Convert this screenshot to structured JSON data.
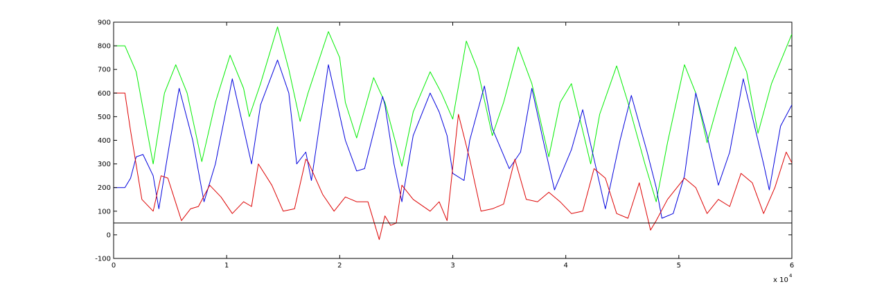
{
  "chart_data": {
    "type": "line",
    "title": "",
    "xlabel": "",
    "ylabel": "",
    "xlim": [
      0,
      6
    ],
    "ylim": [
      -100,
      900
    ],
    "x_exponent_label": "x 10",
    "x_exponent_power": "4",
    "xticks": [
      "0",
      "1",
      "2",
      "3",
      "4",
      "5",
      "6"
    ],
    "yticks": [
      "-100",
      "0",
      "100",
      "200",
      "300",
      "400",
      "500",
      "600",
      "700",
      "800",
      "900"
    ],
    "grid": false,
    "legend": "none",
    "reference_line": {
      "y": 50,
      "color": "#000000"
    },
    "series": [
      {
        "color": "#00ee00",
        "x": [
          0,
          0.1,
          0.2,
          0.35,
          0.45,
          0.55,
          0.65,
          0.78,
          0.9,
          1.03,
          1.15,
          1.2,
          1.3,
          1.45,
          1.55,
          1.65,
          1.72,
          1.9,
          2.0,
          2.05,
          2.15,
          2.3,
          2.4,
          2.55,
          2.65,
          2.8,
          2.9,
          3.0,
          3.12,
          3.22,
          3.35,
          3.45,
          3.58,
          3.7,
          3.85,
          3.95,
          4.05,
          4.22,
          4.3,
          4.45,
          4.55,
          4.7,
          4.8,
          4.9,
          5.05,
          5.15,
          5.25,
          5.35,
          5.5,
          5.6,
          5.7,
          5.82,
          6.0
        ],
        "values": [
          800,
          800,
          690,
          300,
          600,
          720,
          600,
          310,
          560,
          760,
          620,
          500,
          640,
          880,
          700,
          480,
          600,
          860,
          750,
          560,
          410,
          665,
          560,
          290,
          520,
          690,
          600,
          490,
          820,
          700,
          420,
          560,
          795,
          640,
          330,
          560,
          640,
          300,
          510,
          715,
          560,
          300,
          140,
          390,
          720,
          600,
          390,
          560,
          795,
          690,
          430,
          640,
          850
        ]
      },
      {
        "color": "#0000dd",
        "x": [
          0,
          0.1,
          0.15,
          0.2,
          0.26,
          0.35,
          0.4,
          0.5,
          0.58,
          0.7,
          0.8,
          0.9,
          1.05,
          1.15,
          1.22,
          1.3,
          1.45,
          1.55,
          1.62,
          1.7,
          1.75,
          1.9,
          2.05,
          2.15,
          2.22,
          2.38,
          2.4,
          2.48,
          2.55,
          2.65,
          2.8,
          2.88,
          2.95,
          3.0,
          3.1,
          3.15,
          3.28,
          3.35,
          3.5,
          3.6,
          3.7,
          3.8,
          3.9,
          4.05,
          4.15,
          4.25,
          4.35,
          4.48,
          4.58,
          4.72,
          4.8,
          4.85,
          4.95,
          5.05,
          5.15,
          5.25,
          5.35,
          5.45,
          5.57,
          5.65,
          5.75,
          5.8,
          5.9,
          6.0
        ],
        "values": [
          200,
          200,
          240,
          330,
          340,
          250,
          110,
          400,
          620,
          400,
          140,
          300,
          660,
          450,
          300,
          550,
          740,
          600,
          300,
          350,
          230,
          720,
          400,
          270,
          280,
          585,
          550,
          300,
          140,
          420,
          600,
          520,
          420,
          260,
          230,
          400,
          630,
          450,
          280,
          350,
          620,
          400,
          190,
          360,
          530,
          320,
          110,
          400,
          590,
          350,
          200,
          70,
          90,
          250,
          600,
          420,
          210,
          350,
          660,
          500,
          300,
          190,
          460,
          550
        ]
      },
      {
        "color": "#dd0000",
        "x": [
          0,
          0.1,
          0.15,
          0.25,
          0.35,
          0.42,
          0.48,
          0.6,
          0.68,
          0.75,
          0.85,
          0.95,
          1.05,
          1.15,
          1.22,
          1.28,
          1.4,
          1.5,
          1.6,
          1.7,
          1.72,
          1.85,
          1.95,
          2.05,
          2.15,
          2.25,
          2.35,
          2.4,
          2.45,
          2.5,
          2.55,
          2.65,
          2.8,
          2.88,
          2.95,
          3.05,
          3.15,
          3.25,
          3.35,
          3.45,
          3.55,
          3.65,
          3.75,
          3.85,
          3.95,
          4.05,
          4.15,
          4.25,
          4.35,
          4.45,
          4.55,
          4.65,
          4.75,
          4.8,
          4.9,
          5.05,
          5.15,
          5.25,
          5.35,
          5.45,
          5.55,
          5.65,
          5.75,
          5.85,
          5.95,
          6.0
        ],
        "values": [
          600,
          600,
          440,
          150,
          100,
          250,
          240,
          60,
          110,
          120,
          210,
          160,
          90,
          140,
          120,
          300,
          210,
          100,
          110,
          320,
          310,
          170,
          100,
          160,
          140,
          140,
          -20,
          80,
          40,
          50,
          210,
          150,
          100,
          140,
          60,
          510,
          320,
          100,
          110,
          130,
          320,
          150,
          140,
          180,
          140,
          90,
          100,
          280,
          240,
          90,
          70,
          220,
          20,
          60,
          150,
          240,
          200,
          90,
          150,
          120,
          260,
          220,
          90,
          200,
          350,
          305
        ]
      }
    ]
  }
}
